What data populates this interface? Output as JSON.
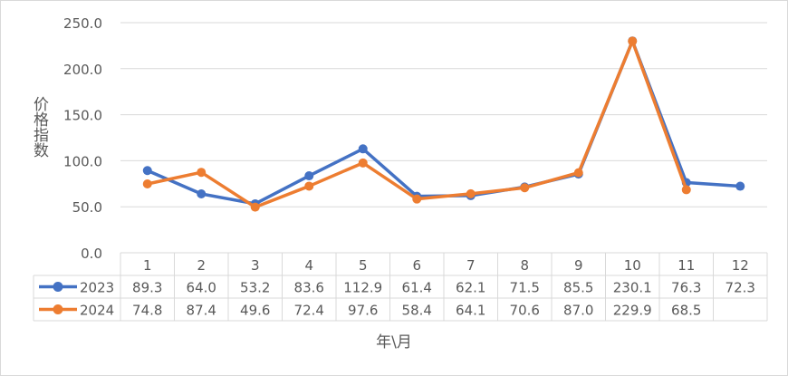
{
  "chart_data": {
    "type": "line",
    "title": "",
    "xlabel": "年\\月",
    "ylabel": "价格指数",
    "ylim": [
      0,
      250
    ],
    "yticks": [
      "0.0",
      "50.0",
      "100.0",
      "150.0",
      "200.0",
      "250.0"
    ],
    "categories": [
      "1",
      "2",
      "3",
      "4",
      "5",
      "6",
      "7",
      "8",
      "9",
      "10",
      "11",
      "12"
    ],
    "grid": true,
    "legend": "data-table",
    "series": [
      {
        "name": "2023",
        "color": "#4472c4",
        "values": [
          89.3,
          64.0,
          53.2,
          83.6,
          112.9,
          61.4,
          62.1,
          71.5,
          85.5,
          230.1,
          76.3,
          72.3
        ],
        "labels": [
          "89.3",
          "64.0",
          "53.2",
          "83.6",
          "112.9",
          "61.4",
          "62.1",
          "71.5",
          "85.5",
          "230.1",
          "76.3",
          "72.3"
        ]
      },
      {
        "name": "2024",
        "color": "#ed7d31",
        "values": [
          74.8,
          87.4,
          49.6,
          72.4,
          97.6,
          58.4,
          64.1,
          70.6,
          87.0,
          229.9,
          68.5,
          null
        ],
        "labels": [
          "74.8",
          "87.4",
          "49.6",
          "72.4",
          "97.6",
          "58.4",
          "64.1",
          "70.6",
          "87.0",
          "229.9",
          "68.5",
          ""
        ]
      }
    ]
  }
}
